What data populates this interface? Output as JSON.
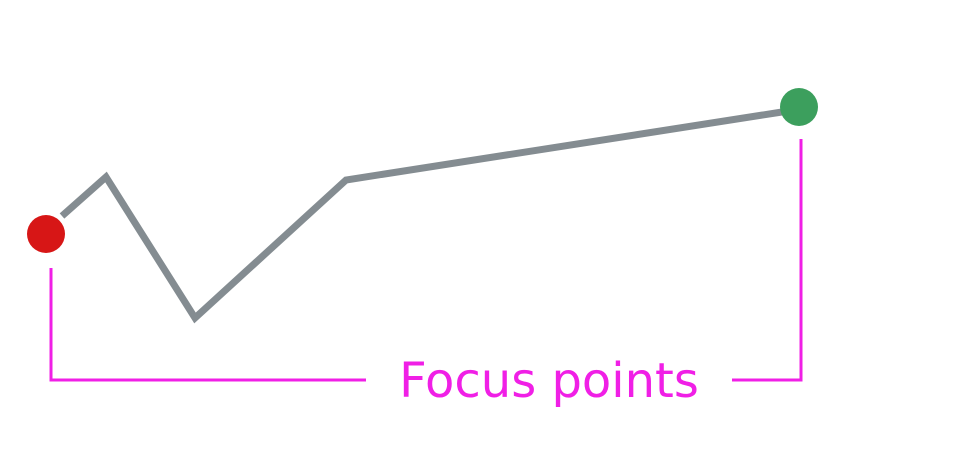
{
  "diagram": {
    "label": "Focus points",
    "colors": {
      "line": "#848c91",
      "start_point": "#d71616",
      "end_point": "#3c9f5d",
      "annotation": "#f01fe6",
      "background": "#ffffff"
    },
    "markers": {
      "start": "start-focus-point",
      "end": "end-focus-point"
    }
  }
}
